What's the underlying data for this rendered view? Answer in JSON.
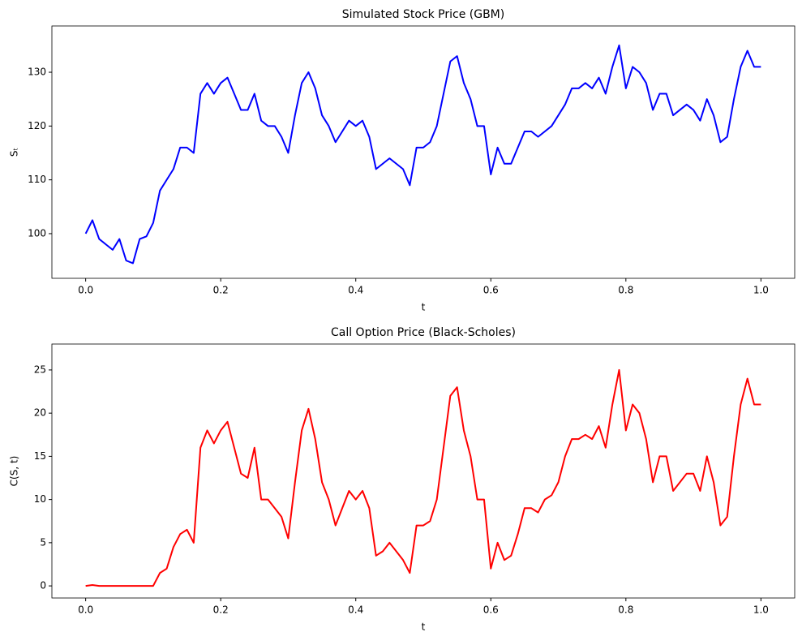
{
  "chart_data": [
    {
      "type": "line",
      "title": "Simulated Stock Price (GBM)",
      "x_label": "t",
      "y_label": "Sₜ",
      "x": [
        0,
        0.01,
        0.02,
        0.03,
        0.04,
        0.05,
        0.06,
        0.07,
        0.08,
        0.09,
        0.1,
        0.11,
        0.12,
        0.13,
        0.14,
        0.15,
        0.16,
        0.17,
        0.18,
        0.19,
        0.2,
        0.21,
        0.22,
        0.23,
        0.24,
        0.25,
        0.26,
        0.27,
        0.28,
        0.29,
        0.3,
        0.31,
        0.32,
        0.33,
        0.34,
        0.35,
        0.36,
        0.37,
        0.38,
        0.39,
        0.4,
        0.41,
        0.42,
        0.43,
        0.44,
        0.45,
        0.46,
        0.47,
        0.48,
        0.49,
        0.5,
        0.51,
        0.52,
        0.53,
        0.54,
        0.55,
        0.56,
        0.57,
        0.58,
        0.59,
        0.6,
        0.61,
        0.62,
        0.63,
        0.64,
        0.65,
        0.66,
        0.67,
        0.68,
        0.69,
        0.7,
        0.71,
        0.72,
        0.73,
        0.74,
        0.75,
        0.76,
        0.77,
        0.78,
        0.79,
        0.8,
        0.81,
        0.82,
        0.83,
        0.84,
        0.85,
        0.86,
        0.87,
        0.88,
        0.89,
        0.9,
        0.91,
        0.92,
        0.93,
        0.94,
        0.95,
        0.96,
        0.97,
        0.98,
        0.99,
        1
      ],
      "series": [
        {
          "name": "S",
          "color": "#0000ff",
          "values": [
            100,
            102.5,
            99,
            98,
            97,
            99,
            95,
            94.5,
            99,
            99.5,
            102,
            108,
            110,
            112,
            116,
            116,
            115,
            126,
            128,
            126,
            128,
            129,
            126,
            123,
            123,
            126,
            121,
            120,
            120,
            118,
            115,
            122,
            128,
            130,
            127,
            122,
            120,
            117,
            119,
            121,
            120,
            121,
            118,
            112,
            113,
            114,
            113,
            112,
            109,
            116,
            116,
            117,
            120,
            126,
            132,
            133,
            128,
            125,
            120,
            120,
            111,
            116,
            113,
            113,
            116,
            119,
            119,
            118,
            119,
            120,
            122,
            124,
            127,
            127,
            128,
            127,
            129,
            126,
            131,
            135,
            127,
            131,
            130,
            128,
            123,
            126,
            126,
            122,
            123,
            124,
            123,
            121,
            125,
            122,
            117,
            118,
            125,
            131,
            134,
            131,
            131
          ]
        }
      ],
      "xlim": [
        -0.05,
        1.05
      ],
      "ylim": [
        91.7,
        138.6
      ],
      "xticks": [
        {
          "value": 0,
          "label": "0.0"
        },
        0.2,
        0.4,
        0.6,
        0.8,
        {
          "value": 1,
          "label": "1.0"
        }
      ],
      "yticks": [
        100,
        110,
        120,
        130
      ]
    },
    {
      "type": "line",
      "title": "Call Option Price (Black-Scholes)",
      "x_label": "t",
      "y_label": "C(S, t)",
      "x": [
        0,
        0.01,
        0.02,
        0.03,
        0.04,
        0.05,
        0.06,
        0.07,
        0.08,
        0.09,
        0.1,
        0.11,
        0.12,
        0.13,
        0.14,
        0.15,
        0.16,
        0.17,
        0.18,
        0.19,
        0.2,
        0.21,
        0.22,
        0.23,
        0.24,
        0.25,
        0.26,
        0.27,
        0.28,
        0.29,
        0.3,
        0.31,
        0.32,
        0.33,
        0.34,
        0.35,
        0.36,
        0.37,
        0.38,
        0.39,
        0.4,
        0.41,
        0.42,
        0.43,
        0.44,
        0.45,
        0.46,
        0.47,
        0.48,
        0.49,
        0.5,
        0.51,
        0.52,
        0.53,
        0.54,
        0.55,
        0.56,
        0.57,
        0.58,
        0.59,
        0.6,
        0.61,
        0.62,
        0.63,
        0.64,
        0.65,
        0.66,
        0.67,
        0.68,
        0.69,
        0.7,
        0.71,
        0.72,
        0.73,
        0.74,
        0.75,
        0.76,
        0.77,
        0.78,
        0.79,
        0.8,
        0.81,
        0.82,
        0.83,
        0.84,
        0.85,
        0.86,
        0.87,
        0.88,
        0.89,
        0.9,
        0.91,
        0.92,
        0.93,
        0.94,
        0.95,
        0.96,
        0.97,
        0.98,
        0.99,
        1
      ],
      "series": [
        {
          "name": "C",
          "color": "#ff0000",
          "values": [
            0,
            0.1,
            0,
            0,
            0,
            0,
            0,
            0,
            0,
            0,
            0,
            1.5,
            2,
            4.5,
            6,
            6.5,
            5,
            16,
            18,
            16.5,
            18,
            19,
            16,
            13,
            12.5,
            16,
            10,
            10,
            9,
            8,
            5.5,
            12,
            18,
            20.5,
            17,
            12,
            10,
            7,
            9,
            11,
            10,
            11,
            9,
            3.5,
            4,
            5,
            4,
            3,
            1.5,
            7,
            7,
            7.5,
            10,
            16,
            22,
            23,
            18,
            15,
            10,
            10,
            2,
            5,
            3,
            3.5,
            6,
            9,
            9,
            8.5,
            10,
            10.5,
            12,
            15,
            17,
            17,
            17.5,
            17,
            18.5,
            16,
            21,
            25,
            18,
            21,
            20,
            17,
            12,
            15,
            15,
            11,
            12,
            13,
            13,
            11,
            15,
            12,
            7,
            8,
            15,
            21,
            24,
            21,
            21
          ]
        }
      ],
      "xlim": [
        -0.05,
        1.05
      ],
      "ylim": [
        -1.4,
        28
      ],
      "xticks": [
        {
          "value": 0,
          "label": "0.0"
        },
        0.2,
        0.4,
        0.6,
        0.8,
        {
          "value": 1,
          "label": "1.0"
        }
      ],
      "yticks": [
        0,
        5,
        10,
        15,
        20,
        25
      ]
    }
  ]
}
